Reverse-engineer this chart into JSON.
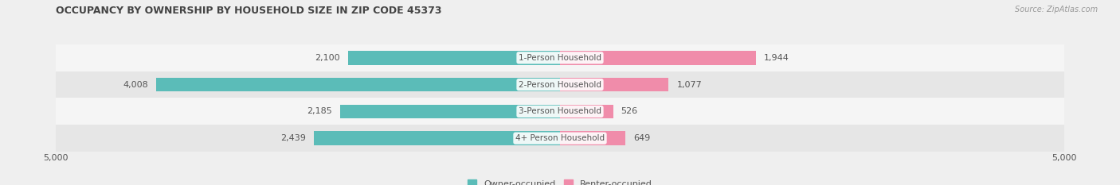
{
  "title": "OCCUPANCY BY OWNERSHIP BY HOUSEHOLD SIZE IN ZIP CODE 45373",
  "source": "Source: ZipAtlas.com",
  "categories": [
    "1-Person Household",
    "2-Person Household",
    "3-Person Household",
    "4+ Person Household"
  ],
  "owner_values": [
    2100,
    4008,
    2185,
    2439
  ],
  "renter_values": [
    1944,
    1077,
    526,
    649
  ],
  "max_scale": 5000,
  "owner_color": "#5bbcb8",
  "renter_color": "#f08caa",
  "label_color": "#555555",
  "title_color": "#444444",
  "background_color": "#efefef",
  "row_colors": [
    "#f5f5f5",
    "#e6e6e6",
    "#f5f5f5",
    "#e6e6e6"
  ],
  "bar_height": 0.52,
  "legend_owner": "Owner-occupied",
  "legend_renter": "Renter-occupied"
}
